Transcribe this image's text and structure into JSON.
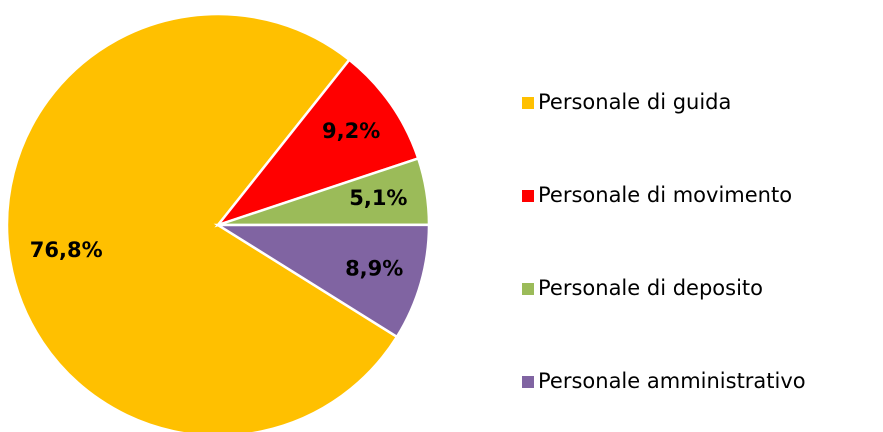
{
  "chart_data": {
    "type": "pie",
    "categories": [
      "Personale di guida",
      "Personale di movimento",
      "Personale di deposito",
      "Personale amministrativo"
    ],
    "values": [
      76.8,
      9.2,
      5.1,
      8.9
    ],
    "value_labels": [
      "76,8%",
      "9,2%",
      "5,1%",
      "8,9%"
    ],
    "colors": [
      "#ffc000",
      "#ff0000",
      "#9bbb59",
      "#8064a2"
    ],
    "legend": "right"
  }
}
